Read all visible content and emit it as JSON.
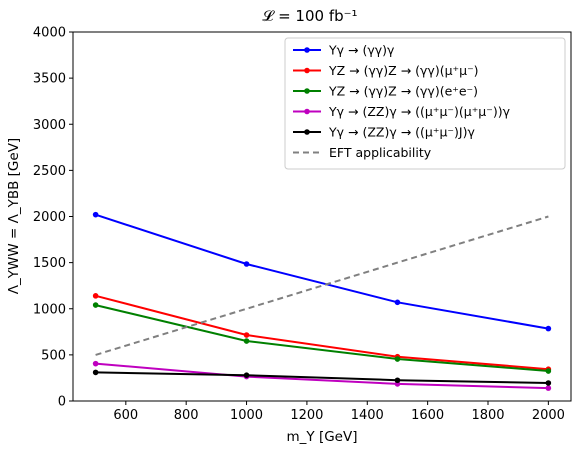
{
  "chart_data": {
    "type": "line",
    "title": "𝓛 = 100 fb⁻¹",
    "xlabel": "m_Y [GeV]",
    "ylabel": "Λ_YWW = Λ_YBB [GeV]",
    "xlim": [
      425,
      2075
    ],
    "ylim": [
      0,
      4000
    ],
    "xticks": [
      600,
      800,
      1000,
      1200,
      1400,
      1600,
      1800,
      2000
    ],
    "yticks": [
      0,
      500,
      1000,
      1500,
      2000,
      2500,
      3000,
      3500,
      4000
    ],
    "grid": false,
    "legend_position": "top-right",
    "x": [
      500,
      1000,
      1500,
      2000
    ],
    "series": [
      {
        "name": "Yγ → (γγ)γ",
        "color": "#0000ff",
        "style": "solid",
        "marker": true,
        "values": [
          2020,
          1485,
          1070,
          785
        ]
      },
      {
        "name": "YZ → (γγ)Z → (γγ)(μ⁺μ⁻)",
        "color": "#ff0000",
        "style": "solid",
        "marker": true,
        "values": [
          1140,
          715,
          480,
          345
        ]
      },
      {
        "name": "YZ → (γγ)Z → (γγ)(e⁺e⁻)",
        "color": "#008000",
        "style": "solid",
        "marker": true,
        "values": [
          1040,
          650,
          455,
          325
        ]
      },
      {
        "name": "Yγ → (ZZ)γ → ((μ⁺μ⁻)(μ⁺μ⁻))γ",
        "color": "#bf00bf",
        "style": "solid",
        "marker": true,
        "values": [
          405,
          265,
          185,
          140
        ]
      },
      {
        "name": "Yγ → (ZZ)γ → ((μ⁺μ⁻)J)γ",
        "color": "#000000",
        "style": "solid",
        "marker": true,
        "values": [
          310,
          280,
          225,
          195
        ]
      },
      {
        "name": "EFT applicability",
        "color": "#808080",
        "style": "dashed",
        "marker": false,
        "values": [
          500,
          1000,
          1500,
          2000
        ]
      }
    ]
  }
}
